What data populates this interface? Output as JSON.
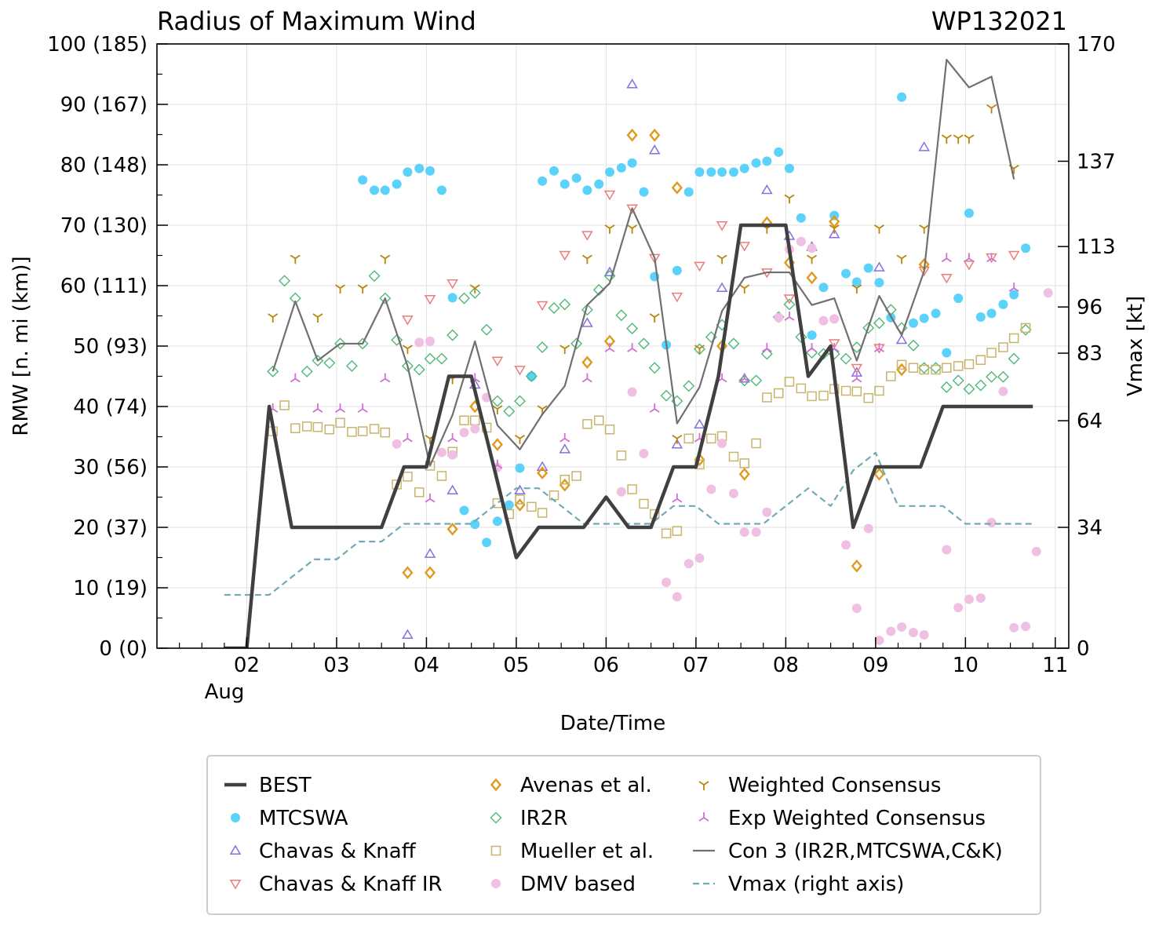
{
  "chart_data": {
    "type": "line",
    "title": "Radius of Maximum Wind",
    "storm_id": "WP132021",
    "xlabel": "Date/Time",
    "ylabel": "RMW [n. mi (km)]",
    "ylabel_right": "Vmax [kt]",
    "x_unit": "days since 2021-08-01 00 UTC",
    "xlim": [
      1.0,
      11.15
    ],
    "ylim": [
      0,
      100
    ],
    "ylim_right": [
      0,
      170
    ],
    "x_ticks": [
      {
        "x": 2,
        "label": "02"
      },
      {
        "x": 3,
        "label": "03"
      },
      {
        "x": 4,
        "label": "04"
      },
      {
        "x": 5,
        "label": "05"
      },
      {
        "x": 6,
        "label": "06"
      },
      {
        "x": 7,
        "label": "07"
      },
      {
        "x": 8,
        "label": "08"
      },
      {
        "x": 9,
        "label": "09"
      },
      {
        "x": 10,
        "label": "10"
      },
      {
        "x": 11,
        "label": "11"
      }
    ],
    "x_month_label": "Aug",
    "y_ticks": [
      {
        "y": 0,
        "label": "0 (0)"
      },
      {
        "y": 10,
        "label": "10 (19)"
      },
      {
        "y": 20,
        "label": "20 (37)"
      },
      {
        "y": 30,
        "label": "30 (56)"
      },
      {
        "y": 40,
        "label": "40 (74)"
      },
      {
        "y": 50,
        "label": "50 (93)"
      },
      {
        "y": 60,
        "label": "60 (111)"
      },
      {
        "y": 70,
        "label": "70 (130)"
      },
      {
        "y": 80,
        "label": "80 (148)"
      },
      {
        "y": 90,
        "label": "90 (167)"
      },
      {
        "y": 100,
        "label": "100 (185)"
      }
    ],
    "y_right_ticks": [
      {
        "v": 0,
        "label": "0"
      },
      {
        "v": 34,
        "label": "34"
      },
      {
        "v": 64,
        "label": "64"
      },
      {
        "v": 83,
        "label": "83"
      },
      {
        "v": 96,
        "label": "96"
      },
      {
        "v": 113,
        "label": "113"
      },
      {
        "v": 137,
        "label": "137"
      },
      {
        "v": 170,
        "label": "170"
      }
    ],
    "grid": true,
    "legend": {
      "placement": "below",
      "columns": 3
    },
    "series": [
      {
        "name": "BEST",
        "kind": "line",
        "color": "#404040",
        "axis": "left",
        "x": [
          1.75,
          2.0,
          2.25,
          2.5,
          2.75,
          3.0,
          3.25,
          3.5,
          3.75,
          4.0,
          4.25,
          4.5,
          4.75,
          5.0,
          5.25,
          5.5,
          5.75,
          6.0,
          6.25,
          6.5,
          6.75,
          7.0,
          7.25,
          7.5,
          7.75,
          8.0,
          8.25,
          8.5,
          8.75,
          9.0,
          9.25,
          9.5,
          9.75,
          10.0,
          10.25,
          10.5,
          10.75
        ],
        "y": [
          0,
          0,
          40,
          20,
          20,
          20,
          20,
          20,
          30,
          30,
          45,
          45,
          30,
          15,
          20,
          20,
          20,
          25,
          20,
          20,
          30,
          30,
          45,
          70,
          70,
          70,
          45,
          50,
          20,
          30,
          30,
          30,
          40,
          40,
          40,
          40,
          40
        ]
      },
      {
        "name": "MTCSWA",
        "kind": "circle",
        "color": "#5ad2fa",
        "axis": "left",
        "x": [
          3.29,
          3.42,
          3.54,
          3.67,
          3.79,
          3.92,
          4.04,
          4.17,
          4.29,
          4.42,
          4.54,
          4.67,
          4.79,
          4.92,
          5.04,
          5.17,
          5.29,
          5.42,
          5.54,
          5.67,
          5.79,
          5.92,
          6.04,
          6.17,
          6.29,
          6.42,
          6.54,
          6.67,
          6.79,
          6.92,
          7.04,
          7.17,
          7.29,
          7.42,
          7.54,
          7.67,
          7.79,
          7.92,
          8.04,
          8.17,
          8.29,
          8.42,
          8.54,
          8.67,
          8.79,
          8.92,
          9.04,
          9.17,
          9.29,
          9.42,
          9.54,
          9.67,
          9.79,
          9.92,
          10.04,
          10.17,
          10.29,
          10.42,
          10.54,
          10.67
        ],
        "y": [
          77.5,
          75.8,
          75.8,
          76.8,
          78.8,
          79.4,
          79.0,
          75.8,
          58.0,
          22.8,
          20.5,
          17.5,
          21.0,
          23.7,
          29.8,
          45.0,
          77.3,
          79.0,
          76.8,
          77.8,
          75.8,
          76.8,
          78.8,
          79.5,
          80.3,
          75.5,
          61.5,
          50.2,
          62.5,
          75.5,
          78.8,
          78.8,
          78.8,
          78.8,
          79.4,
          80.3,
          80.6,
          82.1,
          79.4,
          71.2,
          51.8,
          59.7,
          71.6,
          62.0,
          60.6,
          62.9,
          60.5,
          54.7,
          91.2,
          53.8,
          54.6,
          55.4,
          48.9,
          57.9,
          72.0,
          54.8,
          55.4,
          56.9,
          58.5,
          66.2
        ]
      },
      {
        "name": "Chavas & Knaff",
        "kind": "triangle-up",
        "color": "#8470e0",
        "axis": "left",
        "x": [
          3.79,
          4.04,
          4.29,
          4.54,
          5.04,
          5.29,
          5.54,
          5.79,
          6.04,
          6.29,
          6.54,
          6.79,
          7.04,
          7.29,
          7.54,
          7.79,
          8.04,
          8.29,
          8.54,
          8.79,
          9.04,
          9.29,
          9.54
        ],
        "y": [
          2.2,
          15.6,
          26.1,
          43.6,
          26.1,
          30.0,
          32.9,
          53.8,
          62.2,
          93.3,
          82.4,
          33.7,
          37.0,
          59.6,
          44.6,
          75.8,
          68.2,
          66.4,
          68.5,
          45.6,
          63.0,
          51.0,
          82.9
        ]
      },
      {
        "name": "Chavas & Knaff IR",
        "kind": "triangle-down",
        "color": "#ec7c7c",
        "axis": "left",
        "x": [
          3.79,
          4.04,
          4.29,
          4.79,
          5.04,
          5.29,
          5.54,
          5.79,
          6.04,
          6.29,
          6.54,
          6.79,
          7.04,
          7.29,
          7.54,
          7.79,
          8.04,
          8.54,
          8.79,
          9.04,
          9.54,
          9.79,
          10.04,
          10.29,
          10.54
        ],
        "y": [
          54.4,
          57.8,
          60.4,
          47.6,
          46.1,
          56.8,
          65.1,
          68.4,
          75.1,
          72.8,
          64.6,
          58.2,
          63.3,
          70.0,
          66.6,
          62.2,
          57.9,
          50.5,
          46.4,
          49.7,
          62.5,
          61.3,
          63.5,
          64.7,
          65.1
        ]
      },
      {
        "name": "Avenas et al.",
        "kind": "diamond",
        "color": "#e09a1c",
        "axis": "left",
        "x": [
          3.79,
          4.04,
          4.29,
          4.54,
          4.79,
          5.04,
          5.29,
          5.54,
          5.79,
          6.04,
          6.29,
          6.54,
          6.79,
          7.04,
          7.29,
          7.54,
          7.79,
          8.04,
          8.29,
          8.54,
          8.79,
          9.04,
          9.29,
          9.54
        ],
        "y": [
          12.5,
          12.5,
          19.7,
          40.0,
          33.7,
          23.7,
          29.0,
          27.0,
          47.3,
          50.8,
          84.9,
          84.9,
          76.2,
          31.2,
          50.0,
          28.8,
          70.4,
          63.8,
          61.3,
          70.6,
          13.6,
          28.8,
          46.1,
          63.5
        ]
      },
      {
        "name": "IR2R",
        "kind": "diamond-open",
        "color": "#50b878",
        "axis": "left",
        "x": [
          2.29,
          2.42,
          2.54,
          2.67,
          2.79,
          2.92,
          3.04,
          3.17,
          3.29,
          3.42,
          3.54,
          3.67,
          3.79,
          3.92,
          4.04,
          4.17,
          4.29,
          4.42,
          4.54,
          4.67,
          4.79,
          4.92,
          5.04,
          5.17,
          5.29,
          5.42,
          5.54,
          5.67,
          5.79,
          5.92,
          6.04,
          6.17,
          6.29,
          6.42,
          6.54,
          6.67,
          6.79,
          6.92,
          7.04,
          7.17,
          7.29,
          7.42,
          7.54,
          7.67,
          7.79,
          7.92,
          8.04,
          8.17,
          8.29,
          8.42,
          8.54,
          8.67,
          8.79,
          8.92,
          9.04,
          9.17,
          9.29,
          9.42,
          9.54,
          9.67,
          9.79,
          9.92,
          10.04,
          10.17,
          10.29,
          10.42,
          10.54,
          10.67
        ],
        "y": [
          45.8,
          60.8,
          57.9,
          45.8,
          47.6,
          47.2,
          50.4,
          46.7,
          50.4,
          61.6,
          57.9,
          51.0,
          46.7,
          46.1,
          47.9,
          47.9,
          51.8,
          57.9,
          58.8,
          52.7,
          40.9,
          39.2,
          40.9,
          45.0,
          49.8,
          56.3,
          56.9,
          50.4,
          56.0,
          59.3,
          61.6,
          55.1,
          52.9,
          50.4,
          46.4,
          41.8,
          40.9,
          43.4,
          49.5,
          51.5,
          53.5,
          50.4,
          44.3,
          44.3,
          48.7,
          54.8,
          56.9,
          51.5,
          48.9,
          48.7,
          48.7,
          47.9,
          49.8,
          53.0,
          53.8,
          56.0,
          53.0,
          50.1,
          46.4,
          46.4,
          43.2,
          44.3,
          42.9,
          43.5,
          44.9,
          44.9,
          47.9,
          52.7
        ]
      },
      {
        "name": "Mueller et al.",
        "kind": "square",
        "color": "#c8b46c",
        "axis": "left",
        "x": [
          2.29,
          2.42,
          2.54,
          2.67,
          2.79,
          2.92,
          3.04,
          3.17,
          3.29,
          3.42,
          3.54,
          3.67,
          3.79,
          3.92,
          4.04,
          4.17,
          4.29,
          4.42,
          4.54,
          4.67,
          4.79,
          4.92,
          5.04,
          5.17,
          5.29,
          5.42,
          5.54,
          5.67,
          5.79,
          5.92,
          6.04,
          6.17,
          6.29,
          6.42,
          6.54,
          6.67,
          6.79,
          6.92,
          7.04,
          7.17,
          7.29,
          7.42,
          7.54,
          7.67,
          7.79,
          7.92,
          8.04,
          8.17,
          8.29,
          8.42,
          8.54,
          8.67,
          8.79,
          8.92,
          9.04,
          9.17,
          9.29,
          9.42,
          9.54,
          9.67,
          9.79,
          9.92,
          10.04,
          10.17,
          10.29,
          10.42,
          10.54,
          10.67
        ],
        "y": [
          35.9,
          40.2,
          36.4,
          36.7,
          36.6,
          36.2,
          37.3,
          35.8,
          35.9,
          36.3,
          35.7,
          27.1,
          28.4,
          25.8,
          30.2,
          28.5,
          32.5,
          37.7,
          37.7,
          36.5,
          24.0,
          22.2,
          24.6,
          23.4,
          22.4,
          25.3,
          27.9,
          28.5,
          37.1,
          37.7,
          36.2,
          31.9,
          26.3,
          23.9,
          22.2,
          19.0,
          19.4,
          34.7,
          30.4,
          34.7,
          35.1,
          31.7,
          30.6,
          33.9,
          41.5,
          42.2,
          44.1,
          43.0,
          41.7,
          41.8,
          42.9,
          42.6,
          42.5,
          41.4,
          42.6,
          45.0,
          46.9,
          46.4,
          46.1,
          46.1,
          46.4,
          46.7,
          47.0,
          47.7,
          48.9,
          49.8,
          51.3,
          53.0
        ]
      },
      {
        "name": "DMV based",
        "kind": "circle",
        "color": "#f0c0e4",
        "axis": "left",
        "x": [
          3.67,
          3.92,
          4.04,
          4.17,
          4.29,
          4.42,
          4.54,
          4.67,
          4.79,
          6.17,
          6.29,
          6.42,
          6.67,
          6.79,
          6.92,
          7.04,
          7.17,
          7.29,
          7.42,
          7.54,
          7.67,
          7.79,
          7.92,
          8.04,
          8.17,
          8.29,
          8.42,
          8.54,
          8.67,
          8.79,
          8.92,
          9.04,
          9.17,
          9.29,
          9.42,
          9.54,
          9.79,
          9.92,
          10.04,
          10.17,
          10.29,
          10.42,
          10.54,
          10.67,
          10.79,
          10.92
        ],
        "y": [
          33.8,
          50.6,
          50.8,
          32.4,
          32.0,
          35.7,
          36.3,
          41.5,
          29.9,
          25.9,
          42.4,
          32.2,
          10.9,
          8.5,
          14.0,
          14.9,
          26.3,
          33.9,
          25.6,
          19.2,
          19.2,
          22.5,
          54.7,
          66.0,
          67.3,
          66.2,
          54.2,
          54.5,
          17.1,
          6.6,
          19.8,
          1.3,
          2.8,
          3.5,
          2.6,
          2.2,
          16.3,
          6.7,
          8.1,
          8.3,
          20.8,
          42.5,
          3.4,
          3.6,
          16.0,
          58.8
        ]
      },
      {
        "name": "Weighted Consensus",
        "kind": "tri-down",
        "color": "#b8860b",
        "axis": "left",
        "x": [
          2.29,
          2.54,
          2.79,
          3.04,
          3.29,
          3.54,
          3.79,
          4.04,
          4.29,
          4.54,
          4.79,
          5.04,
          5.29,
          5.54,
          5.79,
          6.04,
          6.29,
          6.54,
          6.79,
          7.04,
          7.29,
          7.54,
          7.79,
          8.04,
          8.29,
          8.54,
          8.79,
          9.04,
          9.29,
          9.54,
          9.79,
          9.92,
          10.04,
          10.29,
          10.54
        ],
        "y": [
          54.8,
          64.5,
          54.8,
          59.6,
          59.6,
          64.5,
          49.6,
          34.7,
          44.6,
          59.6,
          39.6,
          34.7,
          39.6,
          49.6,
          64.5,
          69.5,
          69.5,
          54.8,
          34.7,
          49.6,
          64.5,
          59.6,
          69.5,
          74.5,
          64.5,
          69.5,
          59.6,
          69.5,
          64.5,
          69.5,
          84.4,
          84.4,
          84.4,
          89.4,
          79.4
        ]
      },
      {
        "name": "Exp Weighted Consensus",
        "kind": "tri-up",
        "color": "#d070d0",
        "axis": "left",
        "x": [
          2.29,
          2.54,
          2.79,
          3.04,
          3.29,
          3.54,
          3.79,
          4.04,
          4.29,
          4.54,
          4.79,
          5.54,
          5.79,
          6.04,
          6.29,
          6.54,
          6.79,
          7.04,
          7.29,
          7.54,
          7.79,
          8.04,
          8.29,
          8.54,
          8.79,
          9.04,
          9.79,
          10.04,
          10.29,
          10.54
        ],
        "y": [
          39.6,
          44.6,
          39.6,
          39.6,
          39.6,
          44.6,
          34.7,
          24.7,
          34.7,
          44.6,
          30.3,
          34.7,
          44.6,
          49.6,
          49.6,
          39.6,
          24.7,
          34.7,
          44.6,
          44.6,
          49.6,
          54.8,
          49.6,
          49.6,
          44.6,
          49.6,
          64.5,
          64.5,
          64.5,
          59.6
        ]
      },
      {
        "name": "Con 3 (IR2R,MTCSWA,C&K)",
        "kind": "line",
        "color": "#707070",
        "axis": "left",
        "x": [
          2.29,
          2.54,
          2.79,
          3.04,
          3.29,
          3.54,
          3.79,
          4.04,
          4.29,
          4.54,
          4.79,
          5.04,
          5.29,
          5.54,
          5.79,
          6.04,
          6.29,
          6.54,
          6.79,
          7.04,
          7.29,
          7.54,
          7.79,
          8.04,
          8.29,
          8.54,
          8.79,
          9.04,
          9.29,
          9.54,
          9.79,
          10.04,
          10.29,
          10.54
        ],
        "y": [
          45.8,
          57.4,
          47.6,
          50.4,
          50.4,
          57.9,
          46.7,
          30.2,
          38.6,
          50.8,
          36.9,
          32.9,
          38.7,
          43.4,
          56.8,
          60.4,
          72.8,
          64.6,
          37.2,
          43.2,
          55.8,
          61.3,
          62.2,
          62.2,
          56.8,
          57.9,
          47.6,
          58.3,
          51.8,
          62.4,
          97.4,
          92.8,
          94.6,
          77.6
        ]
      },
      {
        "name": "Vmax (right axis)",
        "kind": "dashed",
        "color": "#70aab4",
        "axis": "right",
        "x": [
          1.75,
          2.0,
          2.25,
          2.5,
          2.75,
          3.0,
          3.25,
          3.5,
          3.75,
          4.0,
          4.25,
          4.5,
          4.75,
          5.0,
          5.25,
          5.5,
          5.75,
          6.0,
          6.25,
          6.5,
          6.75,
          7.0,
          7.25,
          7.5,
          7.75,
          8.0,
          8.25,
          8.5,
          8.75,
          9.0,
          9.25,
          9.5,
          9.75,
          10.0,
          10.25,
          10.5,
          10.75
        ],
        "y": [
          15,
          15,
          15,
          20,
          25,
          25,
          30,
          30,
          35,
          35,
          35,
          35,
          40,
          45,
          45,
          40,
          35,
          35,
          35,
          35,
          40,
          40,
          35,
          35,
          35,
          40,
          45,
          40,
          50,
          55,
          40,
          40,
          40,
          35,
          35,
          35,
          35
        ]
      }
    ]
  }
}
